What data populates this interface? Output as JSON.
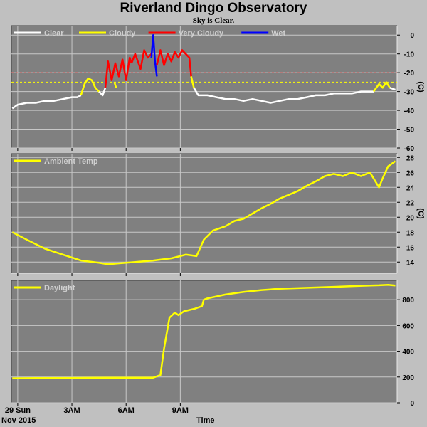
{
  "title": "Riverland Dingo Observatory",
  "subtitle": "Sky is Clear.",
  "footer": {
    "date": "Nov 2015",
    "time_label": "Time"
  },
  "colors": {
    "clear": "#ffffff",
    "cloudy": "#ffff00",
    "very_cloudy": "#ff0000",
    "wet": "#0000ff",
    "panel_bg": "#808080",
    "page_bg": "#c0c0c0",
    "grid": "#c8c8c8"
  },
  "chart_data": [
    {
      "type": "line",
      "legend": [
        "Clear",
        "Cloudy",
        "Very Cloudy",
        "Wet"
      ],
      "ylabel": "(C)",
      "ylim": [
        -60,
        5
      ],
      "yticks": [
        0,
        -10,
        -20,
        -30,
        -40,
        -50,
        -60
      ],
      "threshold_lines": [
        {
          "value": -20,
          "color": "#ff6060"
        },
        {
          "value": -25,
          "color": "#ffff00"
        }
      ],
      "series": [
        {
          "name": "Clear",
          "x": [
            23.7,
            24.0,
            24.5,
            25.0,
            25.5,
            26.0,
            26.5,
            27.0,
            27.3,
            27.5
          ],
          "y": [
            -39,
            -37,
            -36,
            -36,
            -35,
            -35,
            -34,
            -33,
            -33,
            -32
          ]
        },
        {
          "name": "Cloudy",
          "x": [
            27.5,
            27.7,
            27.9,
            28.1,
            28.3,
            28.5
          ],
          "y": [
            -32,
            -26,
            -23,
            -24,
            -28,
            -30
          ]
        },
        {
          "name": "Clear",
          "x": [
            28.5,
            28.7,
            28.85
          ],
          "y": [
            -30,
            -32,
            -28
          ]
        },
        {
          "name": "Very Cloudy",
          "x": [
            28.85,
            29.0,
            29.2,
            29.4,
            29.6,
            29.8,
            30.0,
            30.2,
            30.3
          ],
          "y": [
            -28,
            -14,
            -24,
            -15,
            -22,
            -13,
            -24,
            -12,
            -15
          ]
        },
        {
          "name": "Cloudy",
          "x": [
            29.35,
            29.45
          ],
          "y": [
            -25,
            -28
          ]
        },
        {
          "name": "Very Cloudy",
          "x": [
            30.3,
            30.5,
            30.8,
            31.0,
            31.2,
            31.4
          ],
          "y": [
            -15,
            -10,
            -18,
            -8,
            -12,
            -10
          ]
        },
        {
          "name": "Wet",
          "x": [
            31.4,
            31.5,
            31.6,
            31.7
          ],
          "y": [
            -12,
            0,
            -14,
            -22
          ]
        },
        {
          "name": "Very Cloudy",
          "x": [
            31.7,
            31.9,
            32.1,
            32.3,
            32.5,
            32.7,
            32.9,
            33.1,
            33.3,
            33.5,
            33.6
          ],
          "y": [
            -16,
            -8,
            -16,
            -10,
            -14,
            -9,
            -12,
            -8,
            -10,
            -12,
            -22
          ]
        },
        {
          "name": "Cloudy",
          "x": [
            33.6,
            33.75
          ],
          "y": [
            -22,
            -28
          ]
        },
        {
          "name": "Clear",
          "x": [
            33.75,
            34.0,
            34.5,
            35.0,
            35.5,
            36.0,
            36.5,
            37.0,
            37.5,
            38.0,
            38.5,
            39.0,
            39.5,
            40.0,
            40.5,
            41.0,
            41.5,
            42.0,
            42.5,
            43.0,
            43.5,
            43.7
          ],
          "y": [
            -28,
            -32,
            -32,
            -33,
            -34,
            -34,
            -35,
            -34,
            -35,
            -36,
            -35,
            -34,
            -34,
            -33,
            -32,
            -32,
            -31,
            -31,
            -31,
            -30,
            -30,
            -30
          ]
        },
        {
          "name": "Cloudy",
          "x": [
            43.7,
            44.0,
            44.2,
            44.4,
            44.6
          ],
          "y": [
            -30,
            -26,
            -28,
            -25,
            -28
          ]
        },
        {
          "name": "Clear",
          "x": [
            44.6,
            44.9
          ],
          "y": [
            -28,
            -29
          ]
        }
      ]
    },
    {
      "type": "line",
      "legend": [
        "Ambient Temp"
      ],
      "ylabel": "(C)",
      "ylim": [
        12.5,
        28.5
      ],
      "yticks": [
        14,
        16,
        18,
        20,
        22,
        24,
        26,
        28
      ],
      "series": [
        {
          "name": "Ambient Temp",
          "x": [
            23.7,
            24.5,
            25.5,
            26.5,
            27.5,
            28.5,
            29.0,
            29.5,
            30.5,
            31.5,
            32.5,
            33.0,
            33.3,
            33.6,
            33.9,
            34.3,
            34.8,
            35.5,
            36.0,
            36.5,
            37.0,
            37.5,
            38.0,
            38.5,
            39.0,
            39.5,
            40.0,
            40.5,
            41.0,
            41.5,
            42.0,
            42.5,
            43.0,
            43.5,
            44.0,
            44.2,
            44.5,
            44.9
          ],
          "y": [
            18.0,
            17.0,
            15.8,
            15.0,
            14.2,
            13.9,
            13.7,
            13.8,
            14.0,
            14.2,
            14.5,
            14.8,
            15.0,
            14.9,
            14.8,
            17.0,
            18.2,
            18.8,
            19.5,
            19.8,
            20.5,
            21.2,
            21.8,
            22.5,
            23.0,
            23.5,
            24.2,
            24.8,
            25.5,
            25.8,
            25.5,
            26.0,
            25.5,
            26.0,
            24.0,
            25.2,
            26.8,
            27.5
          ]
        }
      ]
    },
    {
      "type": "line",
      "legend": [
        "Daylight"
      ],
      "ylim": [
        0,
        950
      ],
      "yticks": [
        0,
        200,
        400,
        600,
        800
      ],
      "series": [
        {
          "name": "Daylight",
          "x": [
            23.7,
            25.0,
            27.0,
            29.0,
            31.0,
            31.5,
            31.9,
            32.1,
            32.4,
            32.7,
            32.9,
            33.2,
            33.5,
            33.8,
            34.0,
            34.2,
            34.3,
            34.5,
            35.5,
            36.5,
            37.5,
            38.5,
            39.5,
            40.5,
            41.5,
            42.5,
            43.5,
            44.0,
            44.5,
            44.9
          ],
          "y": [
            190,
            192,
            193,
            195,
            195,
            195,
            215,
            420,
            660,
            700,
            680,
            710,
            720,
            730,
            740,
            750,
            800,
            810,
            840,
            860,
            875,
            885,
            890,
            895,
            900,
            905,
            910,
            912,
            915,
            910
          ]
        }
      ]
    }
  ],
  "x_axis": {
    "xlim": [
      23.65,
      45.0
    ],
    "ticks": [
      {
        "x": 26,
        "label": "29 Sun"
      },
      {
        "x": 27,
        "label": ""
      },
      {
        "x": 28,
        "label": ""
      },
      {
        "x": 29,
        "label": "3AM"
      },
      {
        "x": 30,
        "label": ""
      },
      {
        "x": 31,
        "label": ""
      },
      {
        "x": 32,
        "label": "6AM"
      },
      {
        "x": 33,
        "label": ""
      },
      {
        "x": 34,
        "label": ""
      },
      {
        "x": 35,
        "label": "9AM"
      },
      {
        "x": 36,
        "label": ""
      },
      {
        "x": 37,
        "label": ""
      }
    ],
    "label_ticks": [
      24,
      27,
      30,
      33
    ],
    "gridlines": [
      24,
      27,
      30,
      33
    ]
  }
}
